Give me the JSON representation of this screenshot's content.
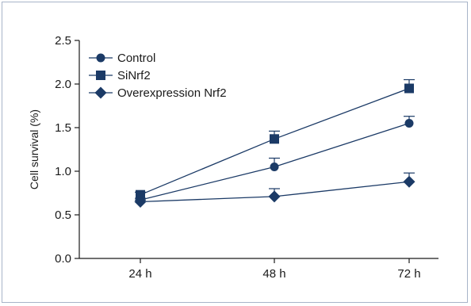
{
  "chart_data": {
    "type": "line",
    "title": "",
    "xlabel": "",
    "ylabel": "Cell survival (%)",
    "categories": [
      "24 h",
      "48 h",
      "72 h"
    ],
    "ylim": [
      0,
      2.5
    ],
    "yticks": [
      0.0,
      0.5,
      1.0,
      1.5,
      2.0,
      2.5
    ],
    "ytick_labels": [
      "0.0",
      "0.5",
      "1.0",
      "1.5",
      "2.0",
      "2.5"
    ],
    "grid": false,
    "legend_position": "top-left",
    "line_color": "#1b3a66",
    "series": [
      {
        "name": "Control",
        "marker": "circle",
        "values": [
          0.67,
          1.05,
          1.55
        ],
        "errors": [
          0.02,
          0.1,
          0.08
        ]
      },
      {
        "name": "SiNrf2",
        "marker": "square",
        "values": [
          0.73,
          1.37,
          1.95
        ],
        "errors": [
          0.03,
          0.09,
          0.1
        ]
      },
      {
        "name": "Overexpression Nrf2",
        "marker": "diamond",
        "values": [
          0.65,
          0.71,
          0.88
        ],
        "errors": [
          0.02,
          0.09,
          0.1
        ]
      }
    ]
  }
}
